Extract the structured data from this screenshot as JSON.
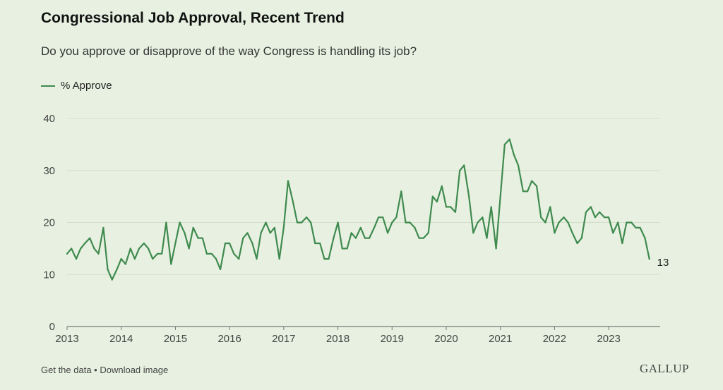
{
  "header": {
    "title": "Congressional Job Approval, Recent Trend",
    "subtitle": "Do you approve or disapprove of the way Congress is handling its job?"
  },
  "footer": {
    "get_data": "Get the data",
    "separator": " • ",
    "download": "Download image",
    "brand": "GALLUP"
  },
  "colors": {
    "line": "#3f8a4f",
    "grid": "#d3dfcb",
    "axis": "#777777",
    "background": "#e8f1e1"
  },
  "chart_data": {
    "type": "line",
    "title": "Congressional Job Approval, Recent Trend",
    "subtitle": "Do you approve or disapprove of the way Congress is handling its job?",
    "xlabel": "",
    "ylabel": "",
    "xlim": [
      2013,
      2023.95
    ],
    "ylim": [
      0,
      40
    ],
    "yticks": [
      0,
      10,
      20,
      30,
      40
    ],
    "xticks": [
      2013,
      2014,
      2015,
      2016,
      2017,
      2018,
      2019,
      2020,
      2021,
      2022,
      2023
    ],
    "grid": true,
    "legend": "top-left",
    "end_label": "13",
    "series": [
      {
        "name": "% Approve",
        "x": [
          2013.0,
          2013.08,
          2013.17,
          2013.25,
          2013.33,
          2013.42,
          2013.5,
          2013.58,
          2013.67,
          2013.75,
          2013.83,
          2013.92,
          2014.0,
          2014.08,
          2014.17,
          2014.25,
          2014.33,
          2014.42,
          2014.5,
          2014.58,
          2014.67,
          2014.75,
          2014.83,
          2014.92,
          2015.0,
          2015.08,
          2015.17,
          2015.25,
          2015.33,
          2015.42,
          2015.5,
          2015.58,
          2015.67,
          2015.75,
          2015.83,
          2015.92,
          2016.0,
          2016.08,
          2016.17,
          2016.25,
          2016.33,
          2016.42,
          2016.5,
          2016.58,
          2016.67,
          2016.75,
          2016.83,
          2016.92,
          2017.0,
          2017.08,
          2017.17,
          2017.25,
          2017.33,
          2017.42,
          2017.5,
          2017.58,
          2017.67,
          2017.75,
          2017.83,
          2017.92,
          2018.0,
          2018.08,
          2018.17,
          2018.25,
          2018.33,
          2018.42,
          2018.5,
          2018.58,
          2018.67,
          2018.75,
          2018.83,
          2018.92,
          2019.0,
          2019.08,
          2019.17,
          2019.25,
          2019.33,
          2019.42,
          2019.5,
          2019.58,
          2019.67,
          2019.75,
          2019.83,
          2019.92,
          2020.0,
          2020.08,
          2020.17,
          2020.25,
          2020.33,
          2020.42,
          2020.5,
          2020.58,
          2020.67,
          2020.75,
          2020.83,
          2020.92,
          2021.0,
          2021.08,
          2021.17,
          2021.25,
          2021.33,
          2021.42,
          2021.5,
          2021.58,
          2021.67,
          2021.75,
          2021.83,
          2021.92,
          2022.0,
          2022.08,
          2022.17,
          2022.25,
          2022.33,
          2022.42,
          2022.5,
          2022.58,
          2022.67,
          2022.75,
          2022.83,
          2022.92,
          2023.0,
          2023.08,
          2023.17,
          2023.25,
          2023.33,
          2023.42,
          2023.5,
          2023.58,
          2023.67,
          2023.75
        ],
        "values": [
          14,
          15,
          13,
          15,
          16,
          17,
          15,
          14,
          19,
          11,
          9,
          11,
          13,
          12,
          15,
          13,
          15,
          16,
          15,
          13,
          14,
          14,
          20,
          12,
          16,
          20,
          18,
          15,
          19,
          17,
          17,
          14,
          14,
          13,
          11,
          16,
          16,
          14,
          13,
          17,
          18,
          16,
          13,
          18,
          20,
          18,
          19,
          13,
          19,
          28,
          24,
          20,
          20,
          21,
          20,
          16,
          16,
          13,
          13,
          17,
          20,
          15,
          15,
          18,
          17,
          19,
          17,
          17,
          19,
          21,
          21,
          18,
          20,
          21,
          26,
          20,
          20,
          19,
          17,
          17,
          18,
          25,
          24,
          27,
          23,
          23,
          22,
          30,
          31,
          25,
          18,
          20,
          21,
          17,
          23,
          15,
          25,
          35,
          36,
          33,
          31,
          26,
          26,
          28,
          27,
          21,
          20,
          23,
          18,
          20,
          21,
          20,
          18,
          16,
          17,
          22,
          23,
          21,
          22,
          21,
          21,
          18,
          20,
          16,
          20,
          20,
          19,
          19,
          17,
          13
        ]
      }
    ]
  }
}
